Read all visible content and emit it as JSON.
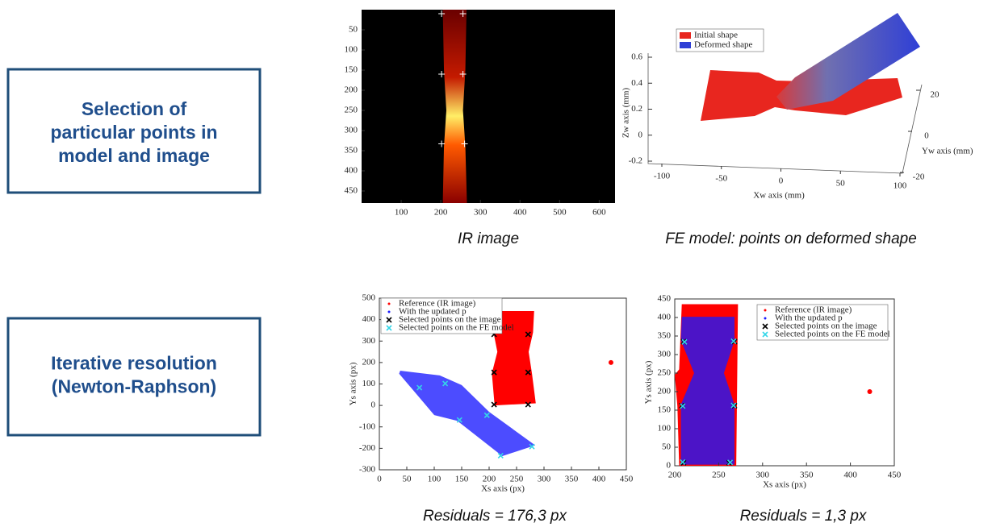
{
  "boxes": [
    {
      "lines": [
        "Selection of",
        "particular points in",
        "model and image"
      ]
    },
    {
      "lines": [
        "Iterative resolution",
        "(Newton-Raphson)"
      ]
    }
  ],
  "captions": [
    "IR image",
    "FE model: points on deformed shape",
    "Residuals = 176,3 px",
    "Residuals = 1,3 px"
  ],
  "chart_data": [
    {
      "type": "heatmap",
      "xlim": [
        0,
        640
      ],
      "ylim": [
        480,
        0
      ],
      "xticks": [
        100,
        200,
        300,
        400,
        500,
        600
      ],
      "yticks": [
        50,
        100,
        150,
        200,
        250,
        300,
        350,
        400,
        450
      ],
      "points": {
        "color": "#ffffff",
        "x": [
          202,
          256,
          202,
          256,
          202,
          260
        ],
        "y": [
          10,
          10,
          160,
          160,
          333,
          333
        ]
      }
    },
    {
      "type": "surface3d",
      "xlabel": "Xw axis (mm)",
      "ylabel": "Yw axis (mm)",
      "zlabel": "Zw axis (mm)",
      "xlim": [
        -100,
        100
      ],
      "ylim": [
        -20,
        20
      ],
      "zlim": [
        -0.2,
        0.6
      ],
      "xticks": [
        -100,
        -50,
        0,
        50,
        100
      ],
      "yticks": [
        -20,
        0,
        20
      ],
      "zticks": [
        -0.2,
        0,
        0.2,
        0.4,
        0.6
      ],
      "series": [
        {
          "name": "Initial shape",
          "color": "#e8261f"
        },
        {
          "name": "Deformed shape",
          "color": "#2f3fd6"
        }
      ]
    },
    {
      "type": "scatter",
      "xlabel": "Xs axis (px)",
      "ylabel": "Ys axis (px)",
      "xlim": [
        0,
        450
      ],
      "ylim": [
        -300,
        500
      ],
      "xticks": [
        0,
        50,
        100,
        150,
        200,
        250,
        300,
        350,
        400,
        450
      ],
      "yticks": [
        -300,
        -200,
        -100,
        0,
        100,
        200,
        300,
        400,
        500
      ],
      "series": [
        {
          "name": "Reference (IR image)",
          "color": "#ff0000",
          "x": [
            422
          ],
          "y": [
            200
          ]
        },
        {
          "name": "With the updated p",
          "color": "#1a1aff"
        },
        {
          "name": "Selected points on the image",
          "color": "#000000",
          "x": [
            209,
            209,
            209,
            271,
            271,
            271
          ],
          "y": [
            331,
            154,
            4,
            331,
            154,
            4
          ]
        },
        {
          "name": "Selected points on the FE model",
          "color": "#33d6e8",
          "x": [
            73,
            120,
            146,
            196,
            221,
            278
          ],
          "y": [
            83,
            102,
            -68,
            -46,
            -234,
            -192
          ]
        }
      ]
    },
    {
      "type": "scatter",
      "xlabel": "Xs axis (px)",
      "ylabel": "Ys axis (px)",
      "xlim": [
        200,
        450
      ],
      "ylim": [
        0,
        450
      ],
      "xticks": [
        200,
        250,
        300,
        350,
        400,
        450
      ],
      "yticks": [
        0,
        50,
        100,
        150,
        200,
        250,
        300,
        350,
        400,
        450
      ],
      "series": [
        {
          "name": "Reference (IR image)",
          "color": "#ff0000",
          "x": [
            422
          ],
          "y": [
            200
          ]
        },
        {
          "name": "With the updated p",
          "color": "#1a1aff"
        },
        {
          "name": "Selected points on the image",
          "color": "#000000",
          "x": [
            210,
            262,
            208,
            268,
            210,
            268
          ],
          "y": [
            8,
            8,
            162,
            162,
            335,
            335
          ]
        },
        {
          "name": "Selected points on the FE model",
          "color": "#33d6e8",
          "x": [
            209,
            263,
            209,
            267,
            211,
            267
          ],
          "y": [
            10,
            9,
            161,
            163,
            334,
            336
          ]
        }
      ]
    }
  ]
}
